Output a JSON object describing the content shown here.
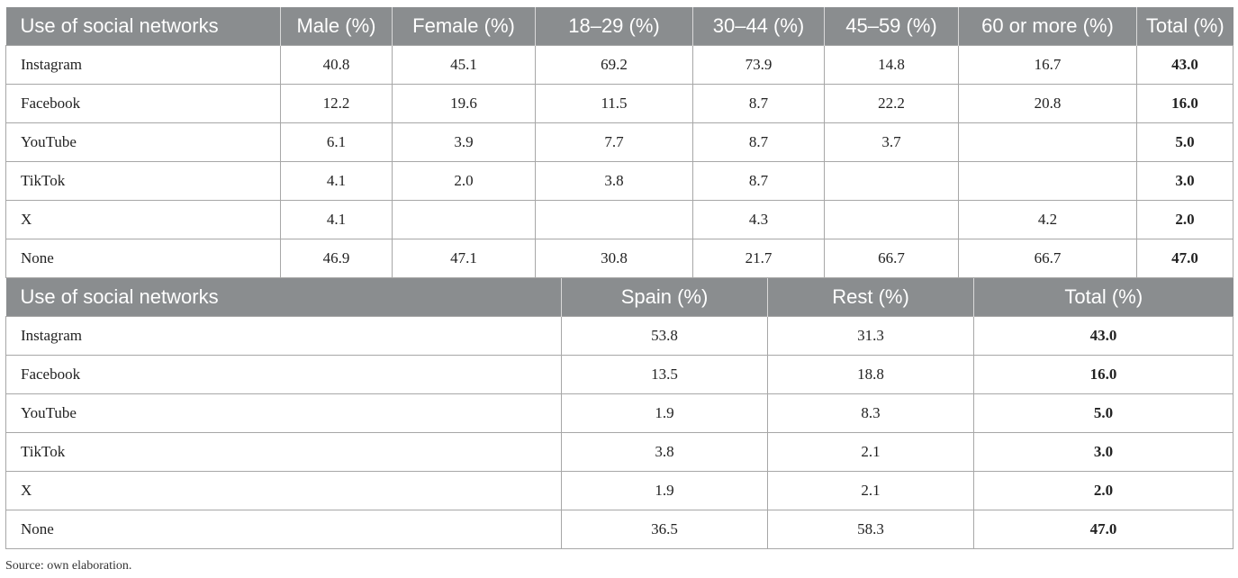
{
  "table1": {
    "headers": [
      "Use of social networks",
      "Male (%)",
      "Female (%)",
      "18–29 (%)",
      "30–44 (%)",
      "45–59 (%)",
      "60 or more (%)",
      "Total (%)"
    ],
    "rows": [
      [
        "Instagram",
        "40.8",
        "45.1",
        "69.2",
        "73.9",
        "14.8",
        "16.7",
        "43.0"
      ],
      [
        "Facebook",
        "12.2",
        "19.6",
        "11.5",
        "8.7",
        "22.2",
        "20.8",
        "16.0"
      ],
      [
        "YouTube",
        "6.1",
        "3.9",
        "7.7",
        "8.7",
        "3.7",
        "",
        "5.0"
      ],
      [
        "TikTok",
        "4.1",
        "2.0",
        "3.8",
        "8.7",
        "",
        "",
        "3.0"
      ],
      [
        "X",
        "4.1",
        "",
        "",
        "4.3",
        "",
        "4.2",
        "2.0"
      ],
      [
        "None",
        "46.9",
        "47.1",
        "30.8",
        "21.7",
        "66.7",
        "66.7",
        "47.0"
      ]
    ]
  },
  "table2": {
    "headers": [
      "Use of social networks",
      "Spain (%)",
      "Rest (%)",
      "Total (%)"
    ],
    "rows": [
      [
        "Instagram",
        "53.8",
        "31.3",
        "43.0"
      ],
      [
        "Facebook",
        "13.5",
        "18.8",
        "16.0"
      ],
      [
        "YouTube",
        "1.9",
        "8.3",
        "5.0"
      ],
      [
        "TikTok",
        "3.8",
        "2.1",
        "3.0"
      ],
      [
        "X",
        "1.9",
        "2.1",
        "2.0"
      ],
      [
        "None",
        "36.5",
        "58.3",
        "47.0"
      ]
    ]
  },
  "source": "Source: own elaboration."
}
